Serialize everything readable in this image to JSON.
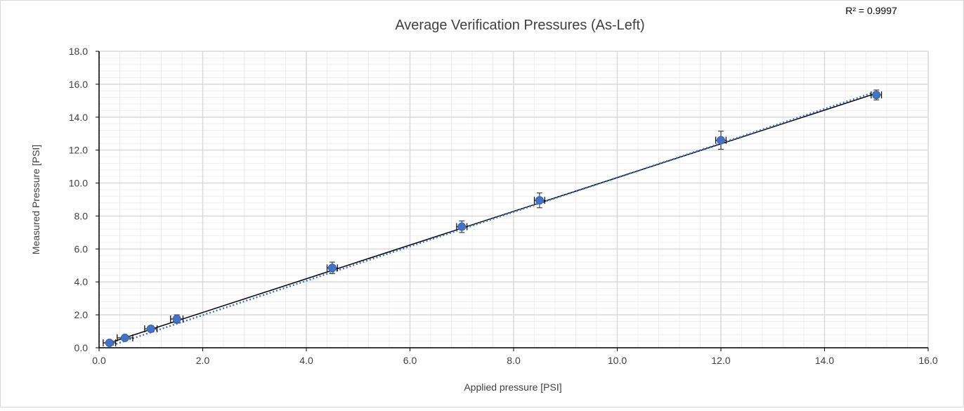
{
  "chart_data": {
    "type": "scatter",
    "title": "Average Verification Pressures (As-Left)",
    "xlabel": "Applied pressure  [PSI]",
    "ylabel": "Measured Pressure [PSI]",
    "xlim": [
      0,
      16
    ],
    "ylim": [
      0,
      18
    ],
    "x_ticks": [
      "0.0",
      "2.0",
      "4.0",
      "6.0",
      "8.0",
      "10.0",
      "12.0",
      "14.0",
      "16.0"
    ],
    "y_ticks": [
      "0.0",
      "2.0",
      "4.0",
      "6.0",
      "8.0",
      "10.0",
      "12.0",
      "14.0",
      "16.0",
      "18.0"
    ],
    "grid": true,
    "annotation": "R² = 0.9997",
    "points": [
      {
        "x": 0.2,
        "y": 0.3,
        "yerr": 0.12,
        "xerr": 0.12
      },
      {
        "x": 0.5,
        "y": 0.6,
        "yerr": 0.15,
        "xerr": 0.15
      },
      {
        "x": 1.0,
        "y": 1.15,
        "yerr": 0.18,
        "xerr": 0.12
      },
      {
        "x": 1.5,
        "y": 1.75,
        "yerr": 0.25,
        "xerr": 0.12
      },
      {
        "x": 4.5,
        "y": 4.85,
        "yerr": 0.35,
        "xerr": 0.1
      },
      {
        "x": 7.0,
        "y": 7.35,
        "yerr": 0.35,
        "xerr": 0.1
      },
      {
        "x": 8.5,
        "y": 8.95,
        "yerr": 0.45,
        "xerr": 0.1
      },
      {
        "x": 12.0,
        "y": 12.6,
        "yerr": 0.55,
        "xerr": 0.1
      },
      {
        "x": 15.0,
        "y": 15.35,
        "yerr": 0.3,
        "xerr": 0.1
      }
    ],
    "reference_line": {
      "x": [
        0.2,
        15.0
      ],
      "y": [
        0.3,
        15.45
      ]
    },
    "trendline": {
      "x": [
        0.2,
        15.0
      ],
      "y": [
        0.1,
        15.55
      ]
    },
    "colors": {
      "marker": "#4472c4",
      "trendline": "#4472c4",
      "reference_line": "#000000",
      "grid_major": "#d9d9d9",
      "grid_minor": "#eeeeee",
      "error_bar": "#404040"
    }
  }
}
